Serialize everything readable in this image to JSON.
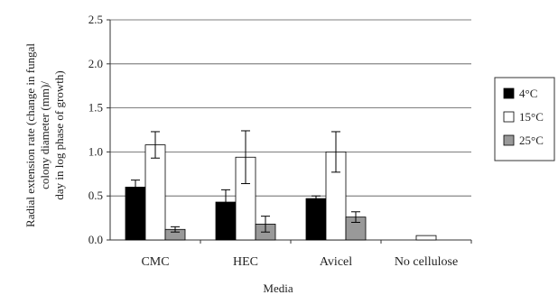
{
  "chart_data": {
    "type": "bar",
    "xlabel": "Media",
    "ylabel_lines": [
      "Radial extension rate (change in fungal",
      "colony diameter (mm)/",
      "day in log phase of growth)"
    ],
    "ylim": [
      0,
      2.5
    ],
    "yticks": [
      "0.0",
      "0.5",
      "1.0",
      "1.5",
      "2.0",
      "2.5"
    ],
    "grid": true,
    "legend_position": "right",
    "categories": [
      "CMC",
      "HEC",
      "Avicel",
      "No cellulose"
    ],
    "series": [
      {
        "name": "4°C",
        "color": "#000000",
        "values": [
          0.6,
          0.43,
          0.47,
          0.0
        ],
        "errors": [
          0.08,
          0.14,
          0.03,
          0.0
        ]
      },
      {
        "name": "15°C",
        "color": "#ffffff",
        "values": [
          1.08,
          0.94,
          1.0,
          0.05
        ],
        "errors": [
          0.15,
          0.3,
          0.23,
          0.0
        ]
      },
      {
        "name": "25°C",
        "color": "#999999",
        "values": [
          0.12,
          0.18,
          0.26,
          0.0
        ],
        "errors": [
          0.03,
          0.09,
          0.06,
          0.0
        ]
      }
    ]
  }
}
